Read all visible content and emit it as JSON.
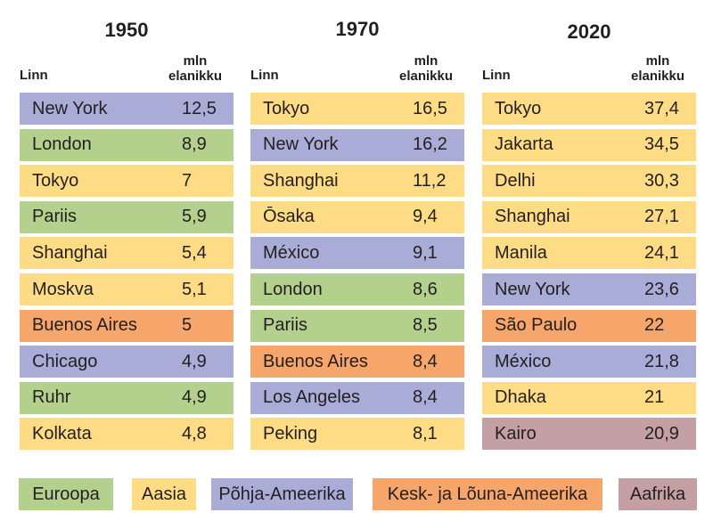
{
  "colors": {
    "Euroopa": "#b3d18c",
    "Aasia": "#fddc85",
    "Põhja-Ameerika": "#a8acd6",
    "Kesk- ja Lõuna-Ameerika": "#f7a66b",
    "Aafrika": "#c49fa3"
  },
  "headers": {
    "city": "Linn",
    "population": [
      "mln",
      "elanikku"
    ]
  },
  "legend": [
    "Euroopa",
    "Aasia",
    "Põhja-Ameerika",
    "Kesk- ja Lõuna-Ameerika",
    "Aafrika"
  ],
  "chart_data": {
    "type": "table",
    "tables": [
      {
        "year": "1950",
        "rows": [
          {
            "city": "New York",
            "value": "12,5",
            "region": "Põhja-Ameerika"
          },
          {
            "city": "London",
            "value": "8,9",
            "region": "Euroopa"
          },
          {
            "city": "Tokyo",
            "value": "7",
            "region": "Aasia"
          },
          {
            "city": "Pariis",
            "value": "5,9",
            "region": "Euroopa"
          },
          {
            "city": "Shanghai",
            "value": "5,4",
            "region": "Aasia"
          },
          {
            "city": "Moskva",
            "value": "5,1",
            "region": "Aasia"
          },
          {
            "city": "Buenos Aires",
            "value": "5",
            "region": "Kesk- ja Lõuna-Ameerika"
          },
          {
            "city": "Chicago",
            "value": "4,9",
            "region": "Põhja-Ameerika"
          },
          {
            "city": "Ruhr",
            "value": "4,9",
            "region": "Euroopa"
          },
          {
            "city": "Kolkata",
            "value": "4,8",
            "region": "Aasia"
          }
        ]
      },
      {
        "year": "1970",
        "rows": [
          {
            "city": "Tokyo",
            "value": "16,5",
            "region": "Aasia"
          },
          {
            "city": "New York",
            "value": "16,2",
            "region": "Põhja-Ameerika"
          },
          {
            "city": "Shanghai",
            "value": "11,2",
            "region": "Aasia"
          },
          {
            "city": "Ōsaka",
            "value": "9,4",
            "region": "Aasia"
          },
          {
            "city": "México",
            "value": "9,1",
            "region": "Põhja-Ameerika"
          },
          {
            "city": "London",
            "value": "8,6",
            "region": "Euroopa"
          },
          {
            "city": "Pariis",
            "value": "8,5",
            "region": "Euroopa"
          },
          {
            "city": "Buenos Aires",
            "value": "8,4",
            "region": "Kesk- ja Lõuna-Ameerika"
          },
          {
            "city": "Los Angeles",
            "value": "8,4",
            "region": "Põhja-Ameerika"
          },
          {
            "city": "Peking",
            "value": "8,1",
            "region": "Aasia"
          }
        ]
      },
      {
        "year": "2020",
        "rows": [
          {
            "city": "Tokyo",
            "value": "37,4",
            "region": "Aasia"
          },
          {
            "city": "Jakarta",
            "value": "34,5",
            "region": "Aasia"
          },
          {
            "city": "Delhi",
            "value": "30,3",
            "region": "Aasia"
          },
          {
            "city": "Shanghai",
            "value": "27,1",
            "region": "Aasia"
          },
          {
            "city": "Manila",
            "value": "24,1",
            "region": "Aasia"
          },
          {
            "city": "New York",
            "value": "23,6",
            "region": "Põhja-Ameerika"
          },
          {
            "city": "São Paulo",
            "value": "22",
            "region": "Kesk- ja Lõuna-Ameerika"
          },
          {
            "city": "México",
            "value": "21,8",
            "region": "Põhja-Ameerika"
          },
          {
            "city": "Dhaka",
            "value": "21",
            "region": "Aasia"
          },
          {
            "city": "Kairo",
            "value": "20,9",
            "region": "Aafrika"
          }
        ]
      }
    ]
  }
}
